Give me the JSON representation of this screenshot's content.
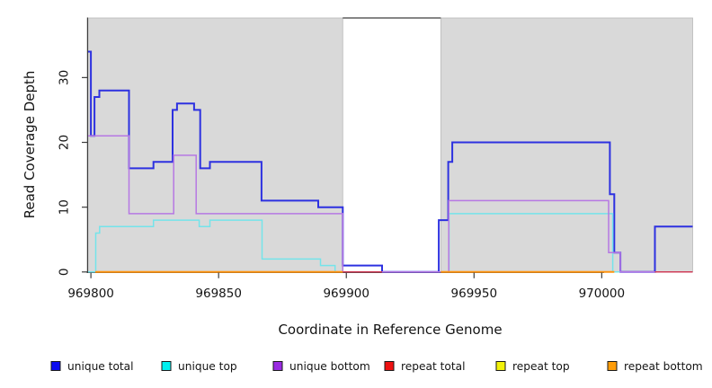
{
  "chart_data": {
    "type": "line",
    "subtype": "step-coverage-plot",
    "x_axis": {
      "label": "Coordinate in Reference Genome",
      "ticks": [
        969800,
        969850,
        969900,
        969950,
        970000
      ],
      "range": [
        969798.9,
        970035.6
      ]
    },
    "y_axis": {
      "label": "Read Coverage Depth",
      "ticks": [
        0,
        10,
        20,
        30
      ],
      "range": [
        0,
        39.2
      ]
    },
    "panel": {
      "background_color": "#d9d9d9",
      "background_bands": [
        {
          "from": 969798.9,
          "to": 969898.6
        },
        {
          "from": 969937.0,
          "to": 970035.6
        }
      ],
      "gap_band": {
        "from": 969898.6,
        "to": 969937.0
      }
    },
    "series": [
      {
        "name": "unique total",
        "line_color": "#2d31e0",
        "legend_color": "#0b0bf0",
        "line_width": 2,
        "segments": [
          {
            "steps": [
              [
                969798.9,
                34
              ],
              [
                969800,
                21
              ],
              [
                969801.4,
                27
              ],
              [
                969803.3,
                28
              ],
              [
                969814.9,
                16
              ],
              [
                969824.5,
                17
              ],
              [
                969832,
                25
              ],
              [
                969833.7,
                26
              ],
              [
                969840.4,
                25
              ],
              [
                969842.8,
                16
              ],
              [
                969846.6,
                17
              ],
              [
                969866.8,
                11
              ],
              [
                969889,
                10
              ],
              [
                969898.6,
                1
              ],
              [
                969914,
                0
              ],
              [
                969936.2,
                8
              ],
              [
                969939.9,
                17
              ],
              [
                969941.5,
                20
              ],
              [
                970003.2,
                12
              ],
              [
                970004.9,
                3
              ],
              [
                970007.3,
                0
              ],
              [
                970020.8,
                7
              ]
            ],
            "end": 970035.6
          }
        ]
      },
      {
        "name": "unique top",
        "line_color": "#74e4ea",
        "legend_color": "#00f0f0",
        "line_width": 1.5,
        "segments": [
          {
            "steps": [
              [
                969798.9,
                0
              ],
              [
                969801.9,
                6
              ],
              [
                969803.4,
                7
              ],
              [
                969824.5,
                8
              ],
              [
                969842.4,
                7
              ],
              [
                969846.6,
                8
              ],
              [
                969867,
                2
              ],
              [
                969889.9,
                1
              ],
              [
                969895.6,
                0
              ],
              [
                969940.2,
                9
              ],
              [
                970004.3,
                0
              ]
            ],
            "end": 970035.6
          }
        ]
      },
      {
        "name": "unique bottom",
        "line_color": "#b678e3",
        "legend_color": "#9a2be2",
        "line_width": 1.5,
        "segments": [
          {
            "steps": [
              [
                969798.9,
                21
              ],
              [
                969814.9,
                9
              ],
              [
                969832.4,
                18
              ],
              [
                969841.2,
                9
              ],
              [
                969898.6,
                0
              ],
              [
                969940.1,
                11
              ],
              [
                970002.7,
                3
              ],
              [
                970007.3,
                0
              ]
            ],
            "end": 970035.6
          }
        ]
      },
      {
        "name": "repeat total",
        "line_color": "#cf3d58",
        "legend_color": "#ee1111",
        "line_width": 1.5,
        "segments": [
          {
            "steps": [
              [
                969898.6,
                0
              ]
            ],
            "end": 969914
          },
          {
            "steps": [
              [
                970020.8,
                0
              ]
            ],
            "end": 970035.6
          }
        ]
      },
      {
        "name": "repeat top",
        "line_color": "#f2f20a",
        "legend_color": "#f2f20a",
        "line_width": 1.5,
        "segments": []
      },
      {
        "name": "repeat bottom",
        "line_color": "#ff9411",
        "legend_color": "#ff9d0a",
        "line_width": 2,
        "segments": [
          {
            "steps": [
              [
                969801.7,
                0
              ]
            ],
            "end": 969898.6
          },
          {
            "steps": [
              [
                969937.0,
                0
              ]
            ],
            "end": 970004.9
          }
        ]
      }
    ],
    "legend": {
      "position": "bottom",
      "items": [
        {
          "label": "unique total",
          "color": "#0b0bf0"
        },
        {
          "label": "unique top",
          "color": "#00f0f0"
        },
        {
          "label": "unique bottom",
          "color": "#9a2be2"
        },
        {
          "label": "repeat total",
          "color": "#ee1111"
        },
        {
          "label": "repeat top",
          "color": "#f2f20a"
        },
        {
          "label": "repeat bottom",
          "color": "#ff9d0a"
        }
      ]
    },
    "titles": {
      "y": "Read Coverage Depth",
      "x": "Coordinate in Reference Genome"
    }
  }
}
